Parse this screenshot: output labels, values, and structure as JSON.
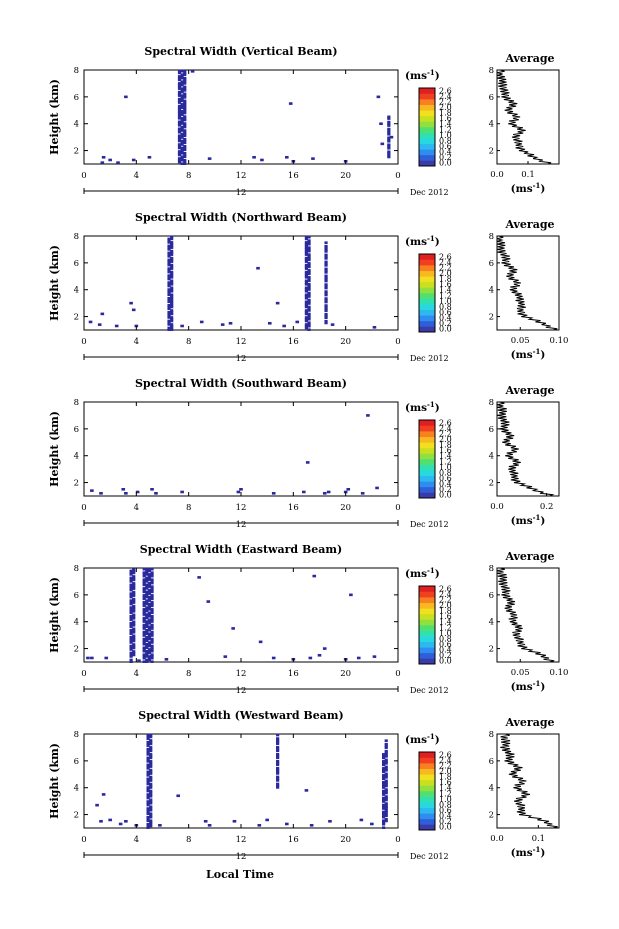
{
  "figure": {
    "xlabel": "Local Time",
    "ylabel": "Height (km)",
    "date_label": "Dec 2012",
    "cb_unit": "(ms",
    "cb_unit_sup": "-1",
    "avg_title": "Average",
    "avg_xlabel": "(ms",
    "avg_xlabel_sup": "-1",
    "mark_color": "#2a2a9c",
    "mark_color_dark": "#1e1e80"
  },
  "chart_data": [
    {
      "type": "heatmap",
      "title": "Spectral Width (Vertical Beam)",
      "xlabel": "Local Time",
      "ylabel": "Height (km)",
      "xlim": [
        0,
        24
      ],
      "ylim": [
        1,
        8
      ],
      "xticks": [
        "0",
        "4",
        "8",
        "12",
        "16",
        "20",
        "0"
      ],
      "yticks": [
        "2",
        "4",
        "6",
        "8"
      ],
      "sub_label": "12",
      "date_label": "Dec 2012",
      "colorbar": {
        "ticks": [
          "2.6",
          "2.4",
          "2.2",
          "2.0",
          "1.8",
          "1.6",
          "1.4",
          "1.2",
          "1.0",
          "0.8",
          "0.6",
          "0.4",
          "0.2",
          "0.0"
        ],
        "unit": "ms-1"
      },
      "columns": [
        [
          7.3,
          1,
          8
        ],
        [
          7.5,
          1,
          8
        ],
        [
          7.7,
          1,
          8
        ],
        [
          23.3,
          1.5,
          4.5
        ]
      ],
      "echoes": [
        [
          1.4,
          1.1
        ],
        [
          1.5,
          1.5
        ],
        [
          2.0,
          1.3
        ],
        [
          2.6,
          1.1
        ],
        [
          3.2,
          6.0
        ],
        [
          3.8,
          1.3
        ],
        [
          5.0,
          1.5
        ],
        [
          9.6,
          1.4
        ],
        [
          8.3,
          7.9
        ],
        [
          13.0,
          1.5
        ],
        [
          13.6,
          1.3
        ],
        [
          15.5,
          1.5
        ],
        [
          15.8,
          5.5
        ],
        [
          16.0,
          1.2
        ],
        [
          17.5,
          1.4
        ],
        [
          20.0,
          1.2
        ],
        [
          22.5,
          6.0
        ],
        [
          22.7,
          4.0
        ],
        [
          22.8,
          2.5
        ],
        [
          23.5,
          3.0
        ]
      ],
      "average": {
        "xlim": [
          0.0,
          0.2
        ],
        "xticks": [
          "0.0",
          "0.1"
        ],
        "ylim": [
          1,
          8
        ],
        "yticks": [
          "2",
          "4",
          "6",
          "8"
        ],
        "heights": [
          1.0,
          1.5,
          2.0,
          2.5,
          3.0,
          3.5,
          4.0,
          4.5,
          5.0,
          5.5,
          6.0,
          6.5,
          7.0,
          7.5,
          8.0
        ],
        "values": [
          0.17,
          0.12,
          0.08,
          0.07,
          0.06,
          0.08,
          0.05,
          0.06,
          0.04,
          0.05,
          0.03,
          0.02,
          0.02,
          0.01,
          0.01
        ]
      }
    },
    {
      "type": "heatmap",
      "title": "Spectral Width (Northward Beam)",
      "xlabel": "Local Time",
      "ylabel": "Height (km)",
      "xlim": [
        0,
        24
      ],
      "ylim": [
        1,
        8
      ],
      "xticks": [
        "0",
        "4",
        "8",
        "12",
        "16",
        "20",
        "0"
      ],
      "yticks": [
        "2",
        "4",
        "6",
        "8"
      ],
      "sub_label": "12",
      "date_label": "Dec 2012",
      "colorbar": {
        "ticks": [
          "2.6",
          "2.4",
          "2.2",
          "2.0",
          "1.8",
          "1.6",
          "1.4",
          "1.2",
          "1.0",
          "0.8",
          "0.6",
          "0.4",
          "0.2",
          "0.0"
        ],
        "unit": "ms-1"
      },
      "columns": [
        [
          6.5,
          1,
          8
        ],
        [
          6.7,
          1,
          8
        ],
        [
          17.0,
          1,
          8
        ],
        [
          17.2,
          1,
          8
        ],
        [
          18.5,
          1.5,
          7.5
        ]
      ],
      "echoes": [
        [
          0.5,
          1.6
        ],
        [
          1.2,
          1.4
        ],
        [
          1.4,
          2.2
        ],
        [
          2.5,
          1.3
        ],
        [
          3.6,
          3.0
        ],
        [
          3.8,
          2.5
        ],
        [
          4.0,
          1.3
        ],
        [
          7.5,
          1.3
        ],
        [
          9.0,
          1.6
        ],
        [
          10.6,
          1.4
        ],
        [
          11.2,
          1.5
        ],
        [
          13.3,
          5.6
        ],
        [
          14.2,
          1.5
        ],
        [
          14.8,
          3.0
        ],
        [
          15.3,
          1.3
        ],
        [
          16.3,
          1.6
        ],
        [
          19.0,
          1.4
        ],
        [
          22.2,
          1.2
        ]
      ],
      "average": {
        "xlim": [
          0.02,
          0.1
        ],
        "xticks": [
          "0.05",
          "0.10"
        ],
        "ylim": [
          1,
          8
        ],
        "yticks": [
          "2",
          "4",
          "6",
          "8"
        ],
        "heights": [
          1.0,
          1.5,
          2.0,
          2.5,
          3.0,
          3.5,
          4.0,
          4.5,
          5.0,
          5.5,
          6.0,
          6.5,
          7.0,
          7.5,
          8.0
        ],
        "values": [
          0.095,
          0.08,
          0.055,
          0.05,
          0.052,
          0.048,
          0.042,
          0.045,
          0.038,
          0.04,
          0.032,
          0.03,
          0.025,
          0.024,
          0.022
        ]
      }
    },
    {
      "type": "heatmap",
      "title": "Spectral Width (Southward Beam)",
      "xlabel": "Local Time",
      "ylabel": "Height (km)",
      "xlim": [
        0,
        24
      ],
      "ylim": [
        1,
        8
      ],
      "xticks": [
        "0",
        "4",
        "8",
        "12",
        "16",
        "20",
        "0"
      ],
      "yticks": [
        "2",
        "4",
        "6",
        "8"
      ],
      "sub_label": "12",
      "date_label": "Dec 2012",
      "colorbar": {
        "ticks": [
          "2.6",
          "2.4",
          "2.2",
          "2.0",
          "1.8",
          "1.6",
          "1.4",
          "1.2",
          "1.0",
          "0.8",
          "0.6",
          "0.4",
          "0.2",
          "0.0"
        ],
        "unit": "ms-1"
      },
      "columns": [],
      "echoes": [
        [
          0.6,
          1.4
        ],
        [
          1.3,
          1.2
        ],
        [
          3.0,
          1.5
        ],
        [
          3.2,
          1.2
        ],
        [
          4.1,
          1.3
        ],
        [
          5.2,
          1.5
        ],
        [
          5.5,
          1.2
        ],
        [
          7.5,
          1.3
        ],
        [
          11.8,
          1.3
        ],
        [
          12.0,
          1.5
        ],
        [
          14.5,
          1.2
        ],
        [
          16.8,
          1.3
        ],
        [
          17.1,
          3.5
        ],
        [
          18.4,
          1.2
        ],
        [
          18.7,
          1.3
        ],
        [
          20.0,
          1.3
        ],
        [
          20.2,
          1.5
        ],
        [
          21.3,
          1.2
        ],
        [
          21.7,
          7.0
        ],
        [
          22.4,
          1.6
        ]
      ],
      "average": {
        "xlim": [
          0.0,
          0.25
        ],
        "xticks": [
          "0.0",
          "0.2"
        ],
        "ylim": [
          1,
          8
        ],
        "yticks": [
          "2",
          "4",
          "6",
          "8"
        ],
        "heights": [
          1.0,
          1.5,
          2.0,
          2.5,
          3.0,
          3.5,
          4.0,
          4.5,
          5.0,
          5.5,
          6.0,
          6.5,
          7.0,
          7.5,
          8.0
        ],
        "values": [
          0.22,
          0.15,
          0.08,
          0.07,
          0.06,
          0.08,
          0.05,
          0.07,
          0.04,
          0.05,
          0.03,
          0.03,
          0.02,
          0.02,
          0.01
        ]
      }
    },
    {
      "type": "heatmap",
      "title": "Spectral Width (Eastward Beam)",
      "xlabel": "Local Time",
      "ylabel": "Height (km)",
      "xlim": [
        0,
        24
      ],
      "ylim": [
        1,
        8
      ],
      "xticks": [
        "0",
        "4",
        "8",
        "12",
        "16",
        "20",
        "0"
      ],
      "yticks": [
        "2",
        "4",
        "6",
        "8"
      ],
      "sub_label": "12",
      "date_label": "Dec 2012",
      "colorbar": {
        "ticks": [
          "2.6",
          "2.4",
          "2.2",
          "2.0",
          "1.8",
          "1.6",
          "1.4",
          "1.2",
          "1.0",
          "0.8",
          "0.6",
          "0.4",
          "0.2",
          "0.0"
        ],
        "unit": "ms-1"
      },
      "columns": [
        [
          3.6,
          1,
          8
        ],
        [
          3.8,
          1.5,
          8
        ],
        [
          4.6,
          1,
          8
        ],
        [
          4.8,
          1,
          8
        ],
        [
          5.0,
          1,
          8
        ],
        [
          5.2,
          1,
          8
        ]
      ],
      "echoes": [
        [
          0.3,
          1.3
        ],
        [
          0.6,
          1.3
        ],
        [
          1.7,
          1.3
        ],
        [
          4.2,
          1.1
        ],
        [
          6.3,
          1.2
        ],
        [
          8.8,
          7.3
        ],
        [
          9.5,
          5.5
        ],
        [
          10.8,
          1.4
        ],
        [
          11.4,
          3.5
        ],
        [
          13.5,
          2.5
        ],
        [
          14.5,
          1.3
        ],
        [
          16.0,
          1.2
        ],
        [
          17.3,
          1.3
        ],
        [
          17.6,
          7.4
        ],
        [
          18.0,
          1.5
        ],
        [
          18.4,
          2.0
        ],
        [
          20.0,
          1.2
        ],
        [
          20.4,
          6.0
        ],
        [
          21.0,
          1.3
        ],
        [
          22.2,
          1.4
        ]
      ],
      "average": {
        "xlim": [
          0.02,
          0.1
        ],
        "xticks": [
          "0.05",
          "0.10"
        ],
        "ylim": [
          1,
          8
        ],
        "yticks": [
          "2",
          "4",
          "6",
          "8"
        ],
        "heights": [
          1.0,
          1.5,
          2.0,
          2.5,
          3.0,
          3.5,
          4.0,
          4.5,
          5.0,
          5.5,
          6.0,
          6.5,
          7.0,
          7.5,
          8.0
        ],
        "values": [
          0.09,
          0.08,
          0.055,
          0.05,
          0.045,
          0.048,
          0.042,
          0.04,
          0.036,
          0.037,
          0.032,
          0.03,
          0.028,
          0.026,
          0.024
        ]
      }
    },
    {
      "type": "heatmap",
      "title": "Spectral Width (Westward Beam)",
      "xlabel": "Local Time",
      "ylabel": "Height (km)",
      "xlim": [
        0,
        24
      ],
      "ylim": [
        1,
        8
      ],
      "xticks": [
        "0",
        "4",
        "8",
        "12",
        "16",
        "20",
        "0"
      ],
      "yticks": [
        "2",
        "4",
        "6",
        "8"
      ],
      "sub_label": "12",
      "date_label": "Dec 2012",
      "colorbar": {
        "ticks": [
          "2.6",
          "2.4",
          "2.2",
          "2.0",
          "1.8",
          "1.6",
          "1.4",
          "1.2",
          "1.0",
          "0.8",
          "0.6",
          "0.4",
          "0.2",
          "0.0"
        ],
        "unit": "ms-1"
      },
      "columns": [
        [
          4.9,
          1,
          8
        ],
        [
          5.1,
          1,
          8
        ],
        [
          14.8,
          4,
          8
        ],
        [
          22.9,
          1,
          6.5
        ],
        [
          23.1,
          1.5,
          7.5
        ]
      ],
      "echoes": [
        [
          1.0,
          2.7
        ],
        [
          1.3,
          1.5
        ],
        [
          1.5,
          3.5
        ],
        [
          2.0,
          1.6
        ],
        [
          2.8,
          1.3
        ],
        [
          3.2,
          1.5
        ],
        [
          4.0,
          1.2
        ],
        [
          5.8,
          1.2
        ],
        [
          7.2,
          3.4
        ],
        [
          9.3,
          1.5
        ],
        [
          9.6,
          1.2
        ],
        [
          11.5,
          1.5
        ],
        [
          13.4,
          1.2
        ],
        [
          14.0,
          1.6
        ],
        [
          15.5,
          1.3
        ],
        [
          17.0,
          3.8
        ],
        [
          17.4,
          1.2
        ],
        [
          18.8,
          1.5
        ],
        [
          21.2,
          1.6
        ],
        [
          22.0,
          1.3
        ]
      ],
      "average": {
        "xlim": [
          0.0,
          0.15
        ],
        "xticks": [
          "0.0",
          "0.1"
        ],
        "ylim": [
          1,
          8
        ],
        "yticks": [
          "2",
          "4",
          "6",
          "8"
        ],
        "heights": [
          1.0,
          1.5,
          2.0,
          2.5,
          3.0,
          3.5,
          4.0,
          4.5,
          5.0,
          5.5,
          6.0,
          6.5,
          7.0,
          7.5,
          8.0
        ],
        "values": [
          0.14,
          0.12,
          0.06,
          0.06,
          0.05,
          0.07,
          0.05,
          0.06,
          0.04,
          0.05,
          0.03,
          0.03,
          0.02,
          0.02,
          0.02
        ]
      }
    }
  ]
}
